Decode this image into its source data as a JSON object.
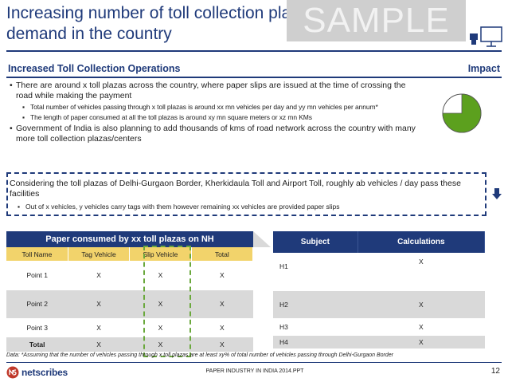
{
  "title": "Increasing number of toll collection plazas will drive paper demand in the country",
  "watermark": "SAMPLE",
  "section": {
    "left_heading": "Increased Toll Collection Operations",
    "right_heading": "Impact"
  },
  "bullets": [
    {
      "level": 1,
      "text": "There are around x toll plazas across the country, where paper slips are issued at the time of crossing the road while making the payment"
    },
    {
      "level": 2,
      "text": "Total number of vehicles passing through x toll plazas is  around xx mn vehicles per day and yy mn vehicles per annum*"
    },
    {
      "level": 2,
      "text": "The length of paper consumed at all the toll plazas is around xy mn square meters or xz mn KMs"
    },
    {
      "level": 1,
      "text": "Government of India is also planning to add thousands of kms of road network across the country with many more toll collection plazas/centers"
    }
  ],
  "impact": {
    "level": 0.75,
    "fill_color": "#5ca01e"
  },
  "callout": {
    "text": "Considering the toll plazas of Delhi-Gurgaon Border, Kherkidaula Toll and Airport Toll, roughly ab  vehicles / day pass these facilities",
    "sub": "Out of x vehicles, y vehicles carry tags with them however remaining xx vehicles are provided paper slips"
  },
  "left_table": {
    "title": "Paper consumed by xx toll plazas on NH",
    "columns": [
      "Toll Name",
      "Tag Vehicle",
      "Slip Vehicle",
      "Total"
    ],
    "rows": [
      [
        "Point 1",
        "X",
        "X",
        "X"
      ],
      [
        "Point 2",
        "X",
        "X",
        "X"
      ],
      [
        "Point 3",
        "X",
        "X",
        "X"
      ],
      [
        "Total",
        "X",
        "X",
        "X"
      ]
    ]
  },
  "right_table": {
    "columns": [
      "Subject",
      "Calculations"
    ],
    "rows": [
      [
        "H1",
        "X"
      ],
      [
        "H2",
        "X"
      ],
      [
        "H3",
        "X"
      ],
      [
        "H4",
        "X"
      ]
    ]
  },
  "note": "Data: *Assuming that the number of vehicles passing through x toll plazas are at least xy% of total number of vehicles passing through Delhi-Gurgaon Border",
  "footer": {
    "logo": "netscribes",
    "center": "PAPER INDUSTRY IN INDIA 2014.PPT",
    "page": "12"
  },
  "colors": {
    "primary": "#1f3a7a",
    "table_header_yellow": "#f2d36b",
    "row_grey": "#d9d9d9",
    "slip_highlight": "#6aa83c"
  }
}
